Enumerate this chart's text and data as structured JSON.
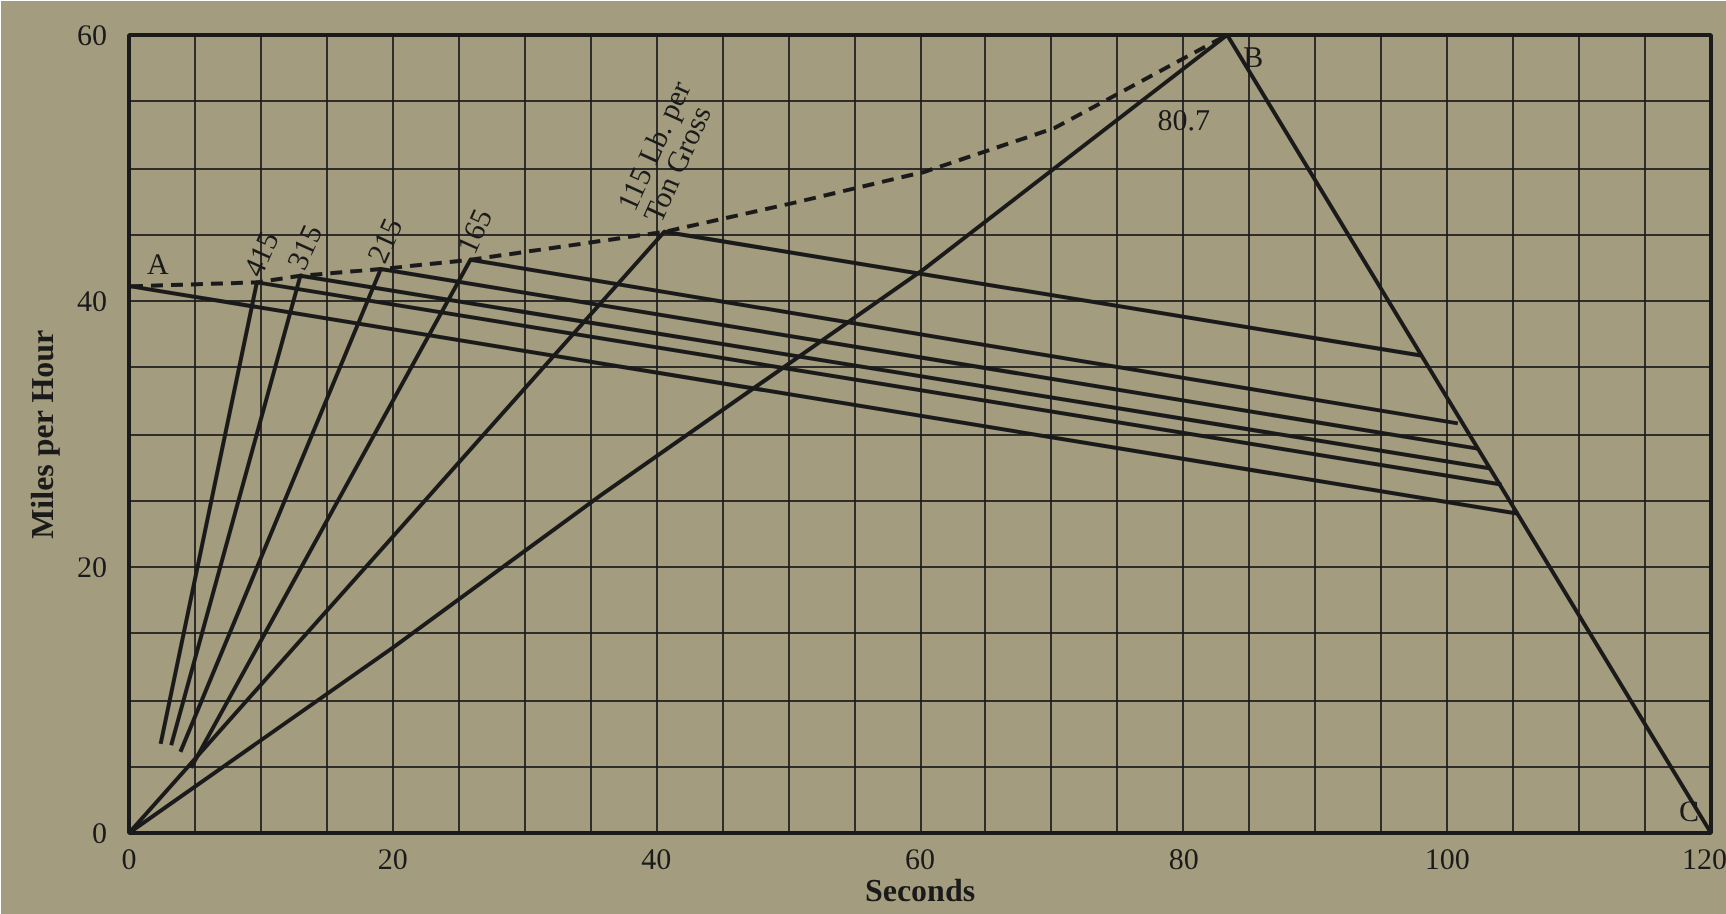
{
  "chart_data": {
    "type": "line",
    "xlabel": "Seconds",
    "ylabel": "Miles per Hour",
    "xlim": [
      0,
      120
    ],
    "ylim": [
      0,
      60
    ],
    "xticks": [
      0,
      {
        "value": 5,
        "label": null
      },
      {
        "value": 10,
        "label": null
      },
      {
        "value": 15,
        "label": null
      },
      20,
      {
        "value": 25,
        "label": null
      },
      {
        "value": 30,
        "label": null
      },
      {
        "value": 35,
        "label": null
      },
      40,
      {
        "value": 45,
        "label": null
      },
      {
        "value": 50,
        "label": null
      },
      {
        "value": 55,
        "label": null
      },
      60,
      {
        "value": 65,
        "label": null
      },
      {
        "value": 70,
        "label": null
      },
      {
        "value": 75,
        "label": null
      },
      80,
      {
        "value": 85,
        "label": null
      },
      {
        "value": 90,
        "label": null
      },
      {
        "value": 95,
        "label": null
      },
      100,
      {
        "value": 105,
        "label": null
      },
      {
        "value": 110,
        "label": null
      },
      {
        "value": 115,
        "label": null
      },
      120
    ],
    "yticks": [
      0,
      {
        "value": 5,
        "label": null
      },
      {
        "value": 10,
        "label": null
      },
      {
        "value": 15,
        "label": null
      },
      20,
      {
        "value": 25,
        "label": null
      },
      {
        "value": 30,
        "label": null
      },
      {
        "value": 35,
        "label": null
      },
      40,
      {
        "value": 45,
        "label": null
      },
      {
        "value": 50,
        "label": null
      },
      {
        "value": 55,
        "label": null
      },
      60
    ],
    "grid": true,
    "marker": "none",
    "line_style": "solid",
    "series": [
      {
        "color": "#1a1a1a",
        "x": [
          0.15,
          105.4
        ],
        "values": [
          41.1,
          24.0
        ]
      },
      {
        "name": "415",
        "color": "#1a1a1a",
        "x": [
          2.4,
          9.7,
          104.1
        ],
        "values": [
          6.7,
          41.4,
          26.2
        ]
      },
      {
        "name": "315",
        "color": "#1a1a1a",
        "x": [
          3.2,
          13.0,
          103.3
        ],
        "values": [
          6.6,
          41.9,
          27.4
        ]
      },
      {
        "name": "215",
        "color": "#1a1a1a",
        "x": [
          3.9,
          19.1,
          102.3
        ],
        "values": [
          6.1,
          42.4,
          28.9
        ]
      },
      {
        "name": "165",
        "color": "#1a1a1a",
        "x": [
          4.7,
          25.9,
          100.8
        ],
        "values": [
          4.9,
          43.1,
          30.8
        ]
      },
      {
        "name": "115 Lb. per\nTon Gross",
        "color": "#1a1a1a",
        "x": [
          0,
          40.6,
          98.0
        ],
        "values": [
          0,
          45.2,
          35.9
        ]
      },
      {
        "color": "#1a1a1a",
        "x": [
          0,
          20.1,
          35.8,
          60.3,
          83.3,
          120
        ],
        "values": [
          0,
          14.0,
          25.4,
          42.4,
          60,
          0
        ]
      },
      {
        "color": "#1a1a1a",
        "line_style": "dashed",
        "x": [
          0.15,
          9.7,
          13.0,
          19.1,
          25.9,
          40.6,
          50.5,
          60.3,
          70.2,
          83.3
        ],
        "values": [
          41.1,
          41.4,
          41.9,
          42.4,
          43.1,
          45.2,
          47.4,
          49.7,
          53.0,
          60
        ]
      }
    ],
    "annotations": [
      {
        "text": "A",
        "x": 0.15,
        "y": 41.1
      },
      {
        "text": "B",
        "x": 83.3,
        "y": 60
      },
      {
        "text": "C",
        "x": 120,
        "y": 0
      },
      {
        "text": "80.7",
        "x": 76.8,
        "y": 55.0
      }
    ]
  }
}
